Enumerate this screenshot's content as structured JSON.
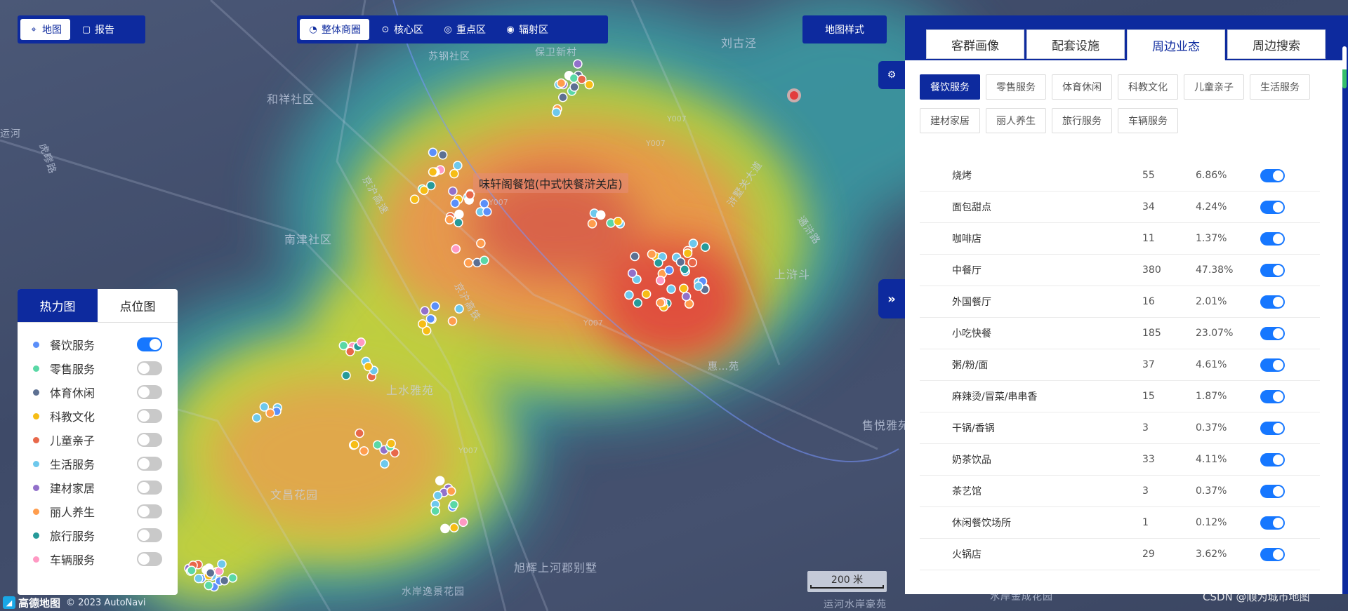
{
  "map": {
    "top_left_buttons": [
      {
        "label": "地图",
        "icon": "map-pin-icon",
        "active": true
      },
      {
        "label": "报告",
        "icon": "report-icon",
        "active": false
      }
    ],
    "mode_buttons": [
      {
        "label": "整体商圈",
        "icon": "circle-chart-icon",
        "active": true
      },
      {
        "label": "核心区",
        "icon": "target-icon",
        "active": false
      },
      {
        "label": "重点区",
        "icon": "focus-icon",
        "active": false
      },
      {
        "label": "辐射区",
        "icon": "radiation-icon",
        "active": false
      }
    ],
    "map_style_label": "地图样式",
    "poi_label": "味轩阁餐馆(中式快餐浒关店)",
    "place_names": [
      "和祥社区",
      "南津社区",
      "上水雅苑",
      "文昌花园",
      "旭辉上河郡别墅",
      "水岸逸景花园",
      "刘古泾",
      "上浒斗",
      "售悦雅苑",
      "运河水岸豪苑",
      "苏钢社区",
      "保卫新村",
      "京沪高速",
      "京沪高铁",
      "虎疁路",
      "运河",
      "浒墅关大道",
      "通浒路",
      "水岸金成花园",
      "惠…苑"
    ],
    "road_tags": [
      "Y007",
      "Y007",
      "Y007",
      "Y007",
      "Y007"
    ],
    "scale_label": "200 米",
    "copyright": "© 2023 AutoNavi",
    "amap_logo": "高德地图",
    "watermark": "CSDN @顺为城市地图"
  },
  "legend": {
    "tabs": [
      {
        "label": "热力图",
        "active": true
      },
      {
        "label": "点位图",
        "active": false
      }
    ],
    "items": [
      {
        "label": "餐饮服务",
        "color": "#5b8ff9",
        "on": true
      },
      {
        "label": "零售服务",
        "color": "#5ad8a6",
        "on": false
      },
      {
        "label": "体育休闲",
        "color": "#5d7092",
        "on": false
      },
      {
        "label": "科教文化",
        "color": "#f6bd16",
        "on": false
      },
      {
        "label": "儿童亲子",
        "color": "#e8684a",
        "on": false
      },
      {
        "label": "生活服务",
        "color": "#6dc8ec",
        "on": false
      },
      {
        "label": "建材家居",
        "color": "#9270ca",
        "on": false
      },
      {
        "label": "丽人养生",
        "color": "#ff9d4d",
        "on": false
      },
      {
        "label": "旅行服务",
        "color": "#269a99",
        "on": false
      },
      {
        "label": "车辆服务",
        "color": "#ff99c3",
        "on": false
      }
    ]
  },
  "panel": {
    "tabs": [
      {
        "label": "客群画像",
        "active": false
      },
      {
        "label": "配套设施",
        "active": false
      },
      {
        "label": "周边业态",
        "active": true
      },
      {
        "label": "周边搜索",
        "active": false
      }
    ],
    "gear_icon": "gear-icon",
    "collapse_icon": "double-chevron-right-icon",
    "subcategories": [
      {
        "label": "餐饮服务",
        "active": true
      },
      {
        "label": "零售服务",
        "active": false
      },
      {
        "label": "体育休闲",
        "active": false
      },
      {
        "label": "科教文化",
        "active": false
      },
      {
        "label": "儿童亲子",
        "active": false
      },
      {
        "label": "生活服务",
        "active": false
      },
      {
        "label": "建材家居",
        "active": false
      },
      {
        "label": "丽人养生",
        "active": false
      },
      {
        "label": "旅行服务",
        "active": false
      },
      {
        "label": "车辆服务",
        "active": false
      }
    ],
    "rows": [
      {
        "name": "烧烤",
        "count": "55",
        "pct": "6.86%",
        "on": true
      },
      {
        "name": "面包甜点",
        "count": "34",
        "pct": "4.24%",
        "on": true
      },
      {
        "name": "咖啡店",
        "count": "11",
        "pct": "1.37%",
        "on": true
      },
      {
        "name": "中餐厅",
        "count": "380",
        "pct": "47.38%",
        "on": true
      },
      {
        "name": "外国餐厅",
        "count": "16",
        "pct": "2.01%",
        "on": true
      },
      {
        "name": "小吃快餐",
        "count": "185",
        "pct": "23.07%",
        "on": true
      },
      {
        "name": "粥/粉/面",
        "count": "37",
        "pct": "4.61%",
        "on": true
      },
      {
        "name": "麻辣烫/冒菜/串串香",
        "count": "15",
        "pct": "1.87%",
        "on": true
      },
      {
        "name": "干锅/香锅",
        "count": "3",
        "pct": "0.37%",
        "on": true
      },
      {
        "name": "奶茶饮品",
        "count": "33",
        "pct": "4.11%",
        "on": true
      },
      {
        "name": "茶艺馆",
        "count": "3",
        "pct": "0.37%",
        "on": true
      },
      {
        "name": "休闲餐饮场所",
        "count": "1",
        "pct": "0.12%",
        "on": true
      },
      {
        "name": "火锅店",
        "count": "29",
        "pct": "3.62%",
        "on": true
      }
    ]
  }
}
